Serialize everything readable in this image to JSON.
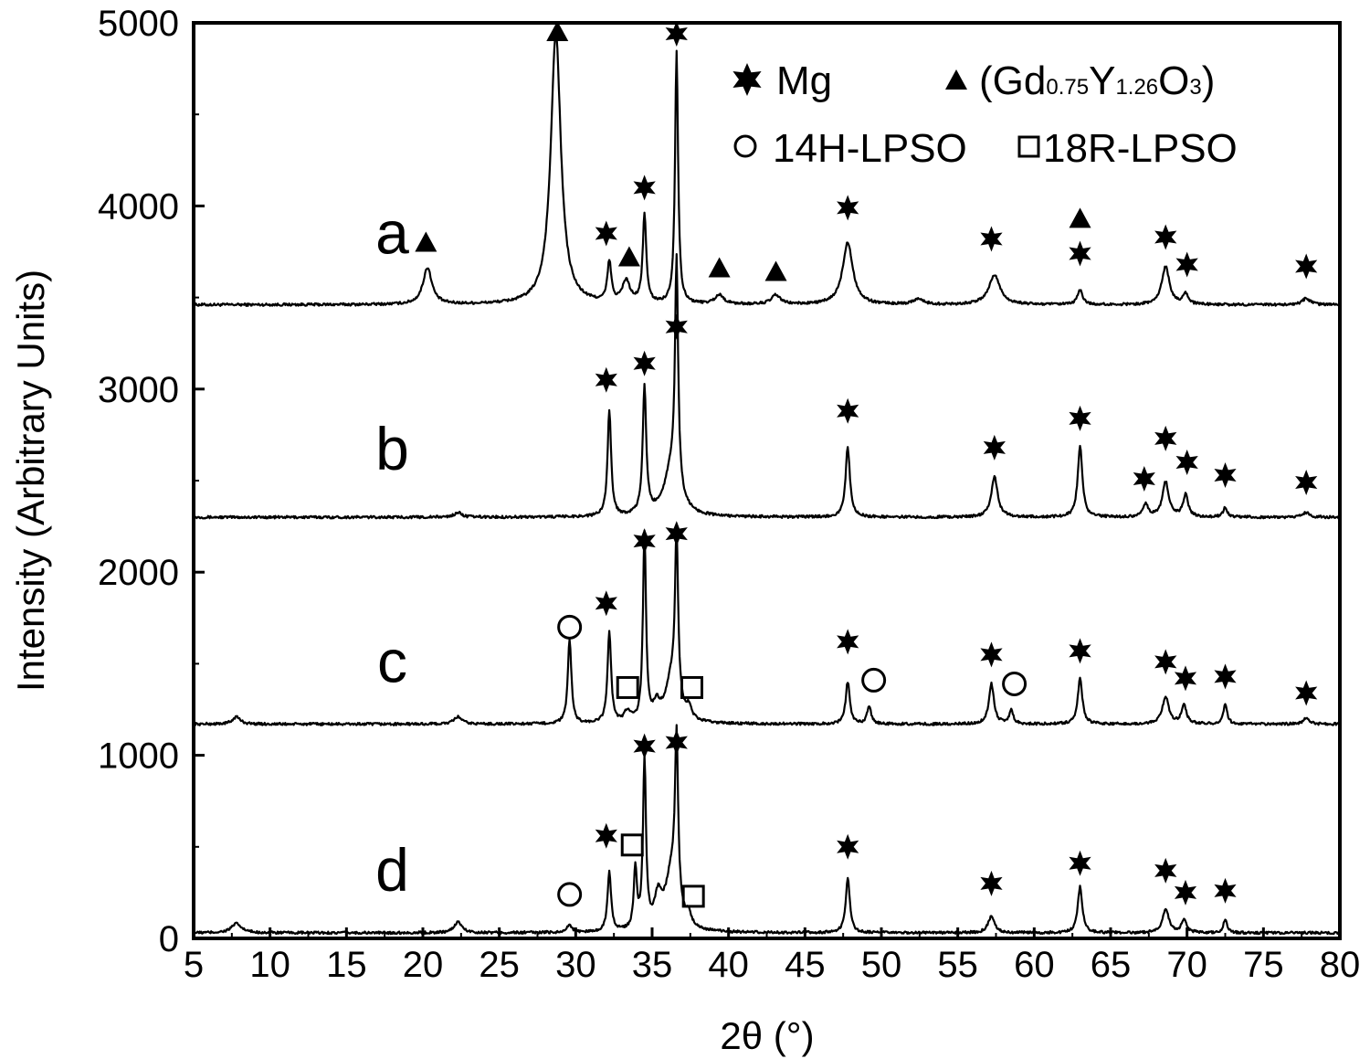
{
  "chart_data": {
    "type": "line",
    "xlabel": "2θ (°)",
    "ylabel": "Intensity (Arbitrary Units)",
    "xlim": [
      5,
      80
    ],
    "ylim": [
      0,
      5000
    ],
    "x_ticks": [
      "5",
      "10",
      "15",
      "20",
      "25",
      "30",
      "35",
      "40",
      "45",
      "50",
      "55",
      "60",
      "65",
      "70",
      "75",
      "80"
    ],
    "y_ticks": [
      "0",
      "1000",
      "2000",
      "3000",
      "4000",
      "5000"
    ],
    "legend": {
      "placement": "top-right",
      "entries": [
        {
          "symbol": "star",
          "label": "Mg"
        },
        {
          "symbol": "triangle",
          "label": "(Gd0.75Y1.26O3)",
          "label_parts": [
            "(Gd",
            "0.75",
            "Y",
            "1.26",
            "O",
            "3",
            ")"
          ]
        },
        {
          "symbol": "circle",
          "label": "14H-LPSO"
        },
        {
          "symbol": "square",
          "label": "18R-LPSO"
        }
      ]
    },
    "series": [
      {
        "name": "a",
        "baseline": 3460,
        "label_pos": [
          18,
          3740
        ],
        "peaks": [
          {
            "x": 20.3,
            "h": 200,
            "w": 0.35
          },
          {
            "x": 28.7,
            "h": 1480,
            "w": 0.4
          },
          {
            "x": 32.2,
            "h": 220,
            "w": 0.15
          },
          {
            "x": 33.3,
            "h": 120,
            "w": 0.3
          },
          {
            "x": 34.5,
            "h": 480,
            "w": 0.14
          },
          {
            "x": 36.6,
            "h": 1380,
            "w": 0.12
          },
          {
            "x": 39.4,
            "h": 50,
            "w": 0.35
          },
          {
            "x": 43.1,
            "h": 50,
            "w": 0.35
          },
          {
            "x": 47.8,
            "h": 340,
            "w": 0.4
          },
          {
            "x": 52.4,
            "h": 30,
            "w": 0.4
          },
          {
            "x": 57.4,
            "h": 160,
            "w": 0.45
          },
          {
            "x": 63.0,
            "h": 80,
            "w": 0.2
          },
          {
            "x": 68.6,
            "h": 210,
            "w": 0.3
          },
          {
            "x": 69.9,
            "h": 60,
            "w": 0.2
          },
          {
            "x": 77.8,
            "h": 35,
            "w": 0.3
          }
        ],
        "markers": [
          {
            "type": "triangle",
            "x": 20.2,
            "y": 3800
          },
          {
            "type": "triangle",
            "x": 28.8,
            "y": 4950
          },
          {
            "type": "star",
            "x": 32.0,
            "y": 3850
          },
          {
            "type": "triangle",
            "x": 33.5,
            "y": 3720
          },
          {
            "type": "star",
            "x": 34.5,
            "y": 4100
          },
          {
            "type": "star",
            "x": 36.6,
            "y": 4940
          },
          {
            "type": "triangle",
            "x": 39.4,
            "y": 3660
          },
          {
            "type": "triangle",
            "x": 43.1,
            "y": 3640
          },
          {
            "type": "star",
            "x": 47.8,
            "y": 3990
          },
          {
            "type": "star",
            "x": 57.2,
            "y": 3820
          },
          {
            "type": "triangle",
            "x": 63.0,
            "y": 3930
          },
          {
            "type": "star",
            "x": 63.0,
            "y": 3740
          },
          {
            "type": "star",
            "x": 68.6,
            "y": 3830
          },
          {
            "type": "star",
            "x": 70.0,
            "y": 3680
          },
          {
            "type": "star",
            "x": 77.8,
            "y": 3670
          }
        ]
      },
      {
        "name": "b",
        "baseline": 2300,
        "label_pos": [
          18,
          2560
        ],
        "peaks": [
          {
            "x": 22.3,
            "h": 25,
            "w": 0.3
          },
          {
            "x": 32.2,
            "h": 580,
            "w": 0.14
          },
          {
            "x": 34.5,
            "h": 690,
            "w": 0.14
          },
          {
            "x": 36.3,
            "h": 260,
            "w": 0.6
          },
          {
            "x": 36.6,
            "h": 1230,
            "w": 0.12
          },
          {
            "x": 47.8,
            "h": 380,
            "w": 0.17
          },
          {
            "x": 57.4,
            "h": 220,
            "w": 0.25
          },
          {
            "x": 63.0,
            "h": 390,
            "w": 0.18
          },
          {
            "x": 67.3,
            "h": 70,
            "w": 0.2
          },
          {
            "x": 68.6,
            "h": 190,
            "w": 0.25
          },
          {
            "x": 69.9,
            "h": 120,
            "w": 0.2
          },
          {
            "x": 72.5,
            "h": 55,
            "w": 0.15
          },
          {
            "x": 77.8,
            "h": 25,
            "w": 0.25
          }
        ],
        "markers": [
          {
            "type": "star",
            "x": 32.0,
            "y": 3050
          },
          {
            "type": "star",
            "x": 34.5,
            "y": 3140
          },
          {
            "type": "star",
            "x": 36.6,
            "y": 3340
          },
          {
            "type": "star",
            "x": 47.8,
            "y": 2880
          },
          {
            "type": "star",
            "x": 57.4,
            "y": 2680
          },
          {
            "type": "star",
            "x": 63.0,
            "y": 2840
          },
          {
            "type": "star",
            "x": 67.2,
            "y": 2510
          },
          {
            "type": "star",
            "x": 68.6,
            "y": 2730
          },
          {
            "type": "star",
            "x": 70.0,
            "y": 2600
          },
          {
            "type": "star",
            "x": 72.5,
            "y": 2530
          },
          {
            "type": "star",
            "x": 77.8,
            "y": 2490
          }
        ]
      },
      {
        "name": "c",
        "baseline": 1170,
        "label_pos": [
          18,
          1400
        ],
        "peaks": [
          {
            "x": 7.8,
            "h": 40,
            "w": 0.3
          },
          {
            "x": 22.3,
            "h": 40,
            "w": 0.3
          },
          {
            "x": 29.6,
            "h": 460,
            "w": 0.14
          },
          {
            "x": 32.2,
            "h": 500,
            "w": 0.14
          },
          {
            "x": 33.4,
            "h": 60,
            "w": 0.25
          },
          {
            "x": 34.5,
            "h": 1030,
            "w": 0.12
          },
          {
            "x": 35.3,
            "h": 80,
            "w": 0.25
          },
          {
            "x": 36.3,
            "h": 240,
            "w": 0.5
          },
          {
            "x": 36.6,
            "h": 900,
            "w": 0.12
          },
          {
            "x": 37.4,
            "h": 60,
            "w": 0.2
          },
          {
            "x": 47.8,
            "h": 230,
            "w": 0.16
          },
          {
            "x": 49.2,
            "h": 100,
            "w": 0.15
          },
          {
            "x": 57.2,
            "h": 220,
            "w": 0.2
          },
          {
            "x": 58.5,
            "h": 80,
            "w": 0.15
          },
          {
            "x": 63.0,
            "h": 250,
            "w": 0.18
          },
          {
            "x": 68.6,
            "h": 150,
            "w": 0.25
          },
          {
            "x": 69.8,
            "h": 100,
            "w": 0.2
          },
          {
            "x": 72.5,
            "h": 110,
            "w": 0.15
          },
          {
            "x": 77.8,
            "h": 30,
            "w": 0.25
          }
        ],
        "markers": [
          {
            "type": "circle",
            "x": 29.6,
            "y": 1700
          },
          {
            "type": "star",
            "x": 32.0,
            "y": 1830
          },
          {
            "type": "square",
            "x": 33.4,
            "y": 1370
          },
          {
            "type": "star",
            "x": 34.5,
            "y": 2170
          },
          {
            "type": "star",
            "x": 36.6,
            "y": 2210
          },
          {
            "type": "square",
            "x": 37.6,
            "y": 1370
          },
          {
            "type": "star",
            "x": 47.8,
            "y": 1620
          },
          {
            "type": "circle",
            "x": 49.5,
            "y": 1410
          },
          {
            "type": "star",
            "x": 57.2,
            "y": 1550
          },
          {
            "type": "circle",
            "x": 58.7,
            "y": 1390
          },
          {
            "type": "star",
            "x": 63.0,
            "y": 1570
          },
          {
            "type": "star",
            "x": 68.6,
            "y": 1510
          },
          {
            "type": "star",
            "x": 69.9,
            "y": 1420
          },
          {
            "type": "star",
            "x": 72.5,
            "y": 1430
          },
          {
            "type": "star",
            "x": 77.8,
            "y": 1340
          }
        ]
      },
      {
        "name": "d",
        "baseline": 30,
        "label_pos": [
          18,
          260
        ],
        "peaks": [
          {
            "x": 7.8,
            "h": 50,
            "w": 0.4
          },
          {
            "x": 22.3,
            "h": 60,
            "w": 0.3
          },
          {
            "x": 29.6,
            "h": 40,
            "w": 0.2
          },
          {
            "x": 32.2,
            "h": 330,
            "w": 0.14
          },
          {
            "x": 33.9,
            "h": 330,
            "w": 0.12
          },
          {
            "x": 34.5,
            "h": 920,
            "w": 0.12
          },
          {
            "x": 35.4,
            "h": 160,
            "w": 0.3
          },
          {
            "x": 36.3,
            "h": 320,
            "w": 0.5
          },
          {
            "x": 36.6,
            "h": 880,
            "w": 0.12
          },
          {
            "x": 37.4,
            "h": 60,
            "w": 0.2
          },
          {
            "x": 47.8,
            "h": 300,
            "w": 0.16
          },
          {
            "x": 57.2,
            "h": 90,
            "w": 0.25
          },
          {
            "x": 63.0,
            "h": 250,
            "w": 0.18
          },
          {
            "x": 68.6,
            "h": 130,
            "w": 0.25
          },
          {
            "x": 69.8,
            "h": 70,
            "w": 0.2
          },
          {
            "x": 72.5,
            "h": 70,
            "w": 0.15
          }
        ],
        "markers": [
          {
            "type": "circle",
            "x": 29.6,
            "y": 240
          },
          {
            "type": "star",
            "x": 32.0,
            "y": 560
          },
          {
            "type": "square",
            "x": 33.7,
            "y": 510
          },
          {
            "type": "star",
            "x": 34.5,
            "y": 1050
          },
          {
            "type": "star",
            "x": 36.6,
            "y": 1070
          },
          {
            "type": "square",
            "x": 37.7,
            "y": 230
          },
          {
            "type": "star",
            "x": 47.8,
            "y": 500
          },
          {
            "type": "star",
            "x": 57.2,
            "y": 300
          },
          {
            "type": "star",
            "x": 63.0,
            "y": 410
          },
          {
            "type": "star",
            "x": 68.6,
            "y": 370
          },
          {
            "type": "star",
            "x": 69.9,
            "y": 250
          },
          {
            "type": "star",
            "x": 72.5,
            "y": 260
          }
        ]
      }
    ]
  }
}
